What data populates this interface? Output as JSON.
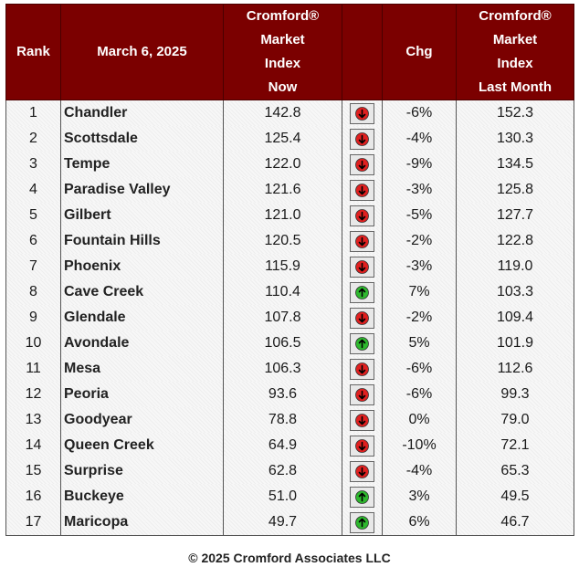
{
  "header": {
    "rank": "Rank",
    "date": "March 6, 2025",
    "index_now": [
      "Cromford®",
      "Market",
      "Index",
      "Now"
    ],
    "chg": "Chg",
    "index_last": [
      "Cromford®",
      "Market",
      "Index",
      "Last Month"
    ]
  },
  "colors": {
    "header_bg": "#7b0000",
    "down": "#e02020",
    "up": "#2eb82e"
  },
  "rows": [
    {
      "rank": "1",
      "city": "Chandler",
      "now": "142.8",
      "dir": "down",
      "chg": "-6%",
      "last": "152.3"
    },
    {
      "rank": "2",
      "city": "Scottsdale",
      "now": "125.4",
      "dir": "down",
      "chg": "-4%",
      "last": "130.3"
    },
    {
      "rank": "3",
      "city": "Tempe",
      "now": "122.0",
      "dir": "down",
      "chg": "-9%",
      "last": "134.5"
    },
    {
      "rank": "4",
      "city": "Paradise Valley",
      "now": "121.6",
      "dir": "down",
      "chg": "-3%",
      "last": "125.8"
    },
    {
      "rank": "5",
      "city": "Gilbert",
      "now": "121.0",
      "dir": "down",
      "chg": "-5%",
      "last": "127.7"
    },
    {
      "rank": "6",
      "city": "Fountain Hills",
      "now": "120.5",
      "dir": "down",
      "chg": "-2%",
      "last": "122.8"
    },
    {
      "rank": "7",
      "city": "Phoenix",
      "now": "115.9",
      "dir": "down",
      "chg": "-3%",
      "last": "119.0"
    },
    {
      "rank": "8",
      "city": "Cave Creek",
      "now": "110.4",
      "dir": "up",
      "chg": "7%",
      "last": "103.3"
    },
    {
      "rank": "9",
      "city": "Glendale",
      "now": "107.8",
      "dir": "down",
      "chg": "-2%",
      "last": "109.4"
    },
    {
      "rank": "10",
      "city": "Avondale",
      "now": "106.5",
      "dir": "up",
      "chg": "5%",
      "last": "101.9"
    },
    {
      "rank": "11",
      "city": "Mesa",
      "now": "106.3",
      "dir": "down",
      "chg": "-6%",
      "last": "112.6"
    },
    {
      "rank": "12",
      "city": "Peoria",
      "now": "93.6",
      "dir": "down",
      "chg": "-6%",
      "last": "99.3"
    },
    {
      "rank": "13",
      "city": "Goodyear",
      "now": "78.8",
      "dir": "down",
      "chg": "0%",
      "last": "79.0"
    },
    {
      "rank": "14",
      "city": "Queen Creek",
      "now": "64.9",
      "dir": "down",
      "chg": "-10%",
      "last": "72.1"
    },
    {
      "rank": "15",
      "city": "Surprise",
      "now": "62.8",
      "dir": "down",
      "chg": "-4%",
      "last": "65.3"
    },
    {
      "rank": "16",
      "city": "Buckeye",
      "now": "51.0",
      "dir": "up",
      "chg": "3%",
      "last": "49.5"
    },
    {
      "rank": "17",
      "city": "Maricopa",
      "now": "49.7",
      "dir": "up",
      "chg": "6%",
      "last": "46.7"
    }
  ],
  "footer": "© 2025 Cromford Associates LLC"
}
